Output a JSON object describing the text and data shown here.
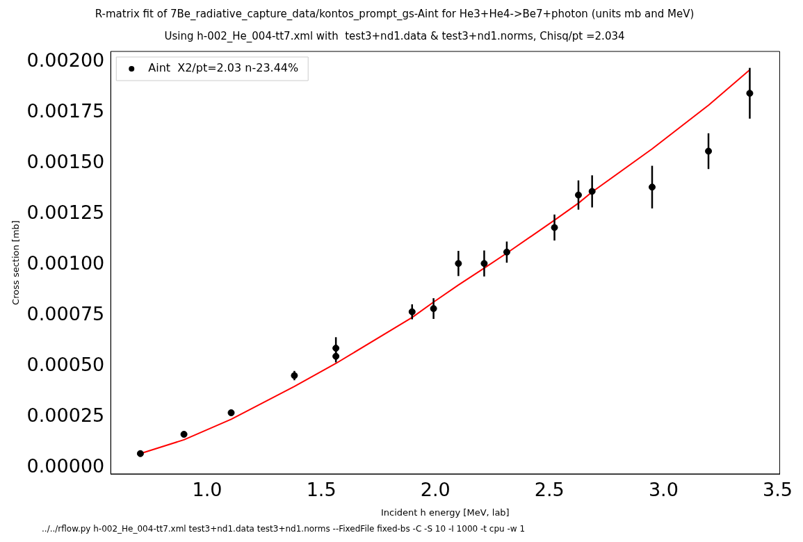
{
  "chart_data": {
    "type": "scatter",
    "title": "R-matrix fit of 7Be_radiative_capture_data/kontos_prompt_gs-Aint for He3+He4->Be7+photon (units mb and MeV)",
    "subtitle": "Using h-002_He_004-tt7.xml with  test3+nd1.data & test3+nd1.norms, Chisq/pt =2.034",
    "xlabel": "Incident h energy [MeV, lab]",
    "ylabel": "Cross section [mb]",
    "annotations": [
      "../../rflow.py h-002_He_004-tt7.xml test3+nd1.data test3+nd1.norms --FixedFile fixed-bs -C -S 10 -I 1000 -t cpu -w 1"
    ],
    "xlim": [
      0.577,
      3.509
    ],
    "ylim": [
      -3e-05,
      0.00205
    ],
    "xticks": [
      {
        "value": 1,
        "label": "1.0"
      },
      {
        "value": 1.5,
        "label": "1.5"
      },
      {
        "value": 2,
        "label": "2.0"
      },
      {
        "value": 2.5,
        "label": "2.5"
      },
      {
        "value": 3,
        "label": "3.0"
      },
      {
        "value": 3.5,
        "label": "3.5"
      }
    ],
    "yticks": [
      {
        "value": 0,
        "label": "0.00000"
      },
      {
        "value": 0.00025,
        "label": "0.00025"
      },
      {
        "value": 0.0005,
        "label": "0.00050"
      },
      {
        "value": 0.00075,
        "label": "0.00075"
      },
      {
        "value": 0.001,
        "label": "0.00100"
      },
      {
        "value": 0.00125,
        "label": "0.00125"
      },
      {
        "value": 0.0015,
        "label": "0.00150"
      },
      {
        "value": 0.00175,
        "label": "0.00175"
      },
      {
        "value": 0.002,
        "label": "0.00200"
      }
    ],
    "grid": false,
    "legend": "top left",
    "marker": "circle",
    "series": [
      {
        "name": "Aint  X2/pt=2.03 n-23.44%",
        "type": "scatter",
        "color": "#000000",
        "x": [
          0.707,
          0.898,
          1.105,
          1.382,
          1.564,
          1.564,
          1.898,
          1.992,
          2.101,
          2.214,
          2.313,
          2.522,
          2.627,
          2.687,
          2.95,
          3.197,
          3.378
        ],
        "values": [
          7e-05,
          0.000165,
          0.000271,
          0.000454,
          0.000589,
          0.000549,
          0.000768,
          0.000784,
          0.001006,
          0.001006,
          0.001062,
          0.001183,
          0.001343,
          0.001361,
          0.001382,
          0.001559,
          0.001844
        ],
        "errors": [
          null,
          null,
          null,
          2.3e-05,
          5.4e-05,
          3e-05,
          3.7e-05,
          5.1e-05,
          6.2e-05,
          6.4e-05,
          5.2e-05,
          6.4e-05,
          7.2e-05,
          7.9e-05,
          0.000105,
          8.8e-05,
          0.000125
        ]
      },
      {
        "type": "line",
        "color": "#ff0000",
        "marker": "none",
        "x": [
          0.707,
          0.898,
          1.105,
          1.382,
          1.564,
          1.898,
          1.992,
          2.101,
          2.214,
          2.313,
          2.522,
          2.627,
          2.687,
          2.95,
          3.197,
          3.378
        ],
        "values": [
          7e-05,
          0.000138,
          0.000239,
          0.000401,
          0.000514,
          0.00074,
          0.000816,
          0.0009,
          0.000983,
          0.001057,
          0.001219,
          0.001303,
          0.001358,
          0.00157,
          0.001785,
          0.001959
        ]
      }
    ]
  }
}
